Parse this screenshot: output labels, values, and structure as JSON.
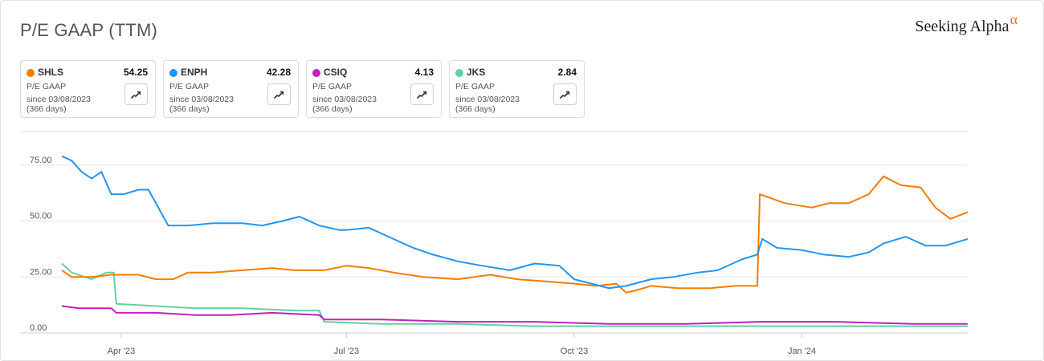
{
  "header": {
    "title": "P/E GAAP (TTM)",
    "brand": "Seeking Alpha",
    "brand_mark": "α"
  },
  "cards": [
    {
      "ticker": "SHLS",
      "value": "54.25",
      "metric": "P/E GAAP",
      "since": "since 03/08/2023",
      "days": "(366 days)",
      "color": "#f57c00",
      "icon": "trend-chart-icon"
    },
    {
      "ticker": "ENPH",
      "value": "42.28",
      "metric": "P/E GAAP",
      "since": "since 03/08/2023",
      "days": "(366 days)",
      "color": "#2196f3",
      "icon": "trend-chart-icon"
    },
    {
      "ticker": "CSIQ",
      "value": "4.13",
      "metric": "P/E GAAP",
      "since": "since 03/08/2023",
      "days": "(366 days)",
      "color": "#c020c0",
      "icon": "trend-chart-icon"
    },
    {
      "ticker": "JKS",
      "value": "2.84",
      "metric": "P/E GAAP",
      "since": "since 03/08/2023",
      "days": "(366 days)",
      "color": "#5ed3a0",
      "icon": "trend-chart-icon"
    }
  ],
  "chart_data": {
    "type": "line",
    "title": "P/E GAAP (TTM)",
    "xlabel": "",
    "ylabel": "",
    "ylim": [
      0,
      90
    ],
    "y_ticks": [
      0,
      25,
      50,
      75
    ],
    "y_tick_labels": [
      "0.00",
      "25.00",
      "50.00",
      "75.00"
    ],
    "x_range": [
      "2023-03-08",
      "2024-03-08"
    ],
    "x_ticks": [
      "2023-04-01",
      "2023-07-01",
      "2023-10-01",
      "2024-01-01"
    ],
    "x_tick_labels": [
      "Apr '23",
      "Jul '23",
      "Oct '23",
      "Jan '24"
    ],
    "grid": true,
    "legend": "top",
    "series": [
      {
        "name": "SHLS",
        "color": "#f57c00",
        "points": [
          [
            "2023-03-08",
            28
          ],
          [
            "2023-03-12",
            25
          ],
          [
            "2023-03-20",
            25
          ],
          [
            "2023-03-28",
            26
          ],
          [
            "2023-04-08",
            26
          ],
          [
            "2023-04-15",
            24
          ],
          [
            "2023-04-22",
            24
          ],
          [
            "2023-04-28",
            27
          ],
          [
            "2023-05-08",
            27
          ],
          [
            "2023-05-20",
            28
          ],
          [
            "2023-06-01",
            29
          ],
          [
            "2023-06-10",
            28
          ],
          [
            "2023-06-22",
            28
          ],
          [
            "2023-07-01",
            30
          ],
          [
            "2023-07-10",
            29
          ],
          [
            "2023-07-20",
            27
          ],
          [
            "2023-08-01",
            25
          ],
          [
            "2023-08-15",
            24
          ],
          [
            "2023-08-28",
            26
          ],
          [
            "2023-09-08",
            24
          ],
          [
            "2023-09-20",
            23
          ],
          [
            "2023-10-01",
            22
          ],
          [
            "2023-10-10",
            21
          ],
          [
            "2023-10-18",
            22
          ],
          [
            "2023-10-22",
            18
          ],
          [
            "2023-10-26",
            19
          ],
          [
            "2023-11-01",
            21
          ],
          [
            "2023-11-12",
            20
          ],
          [
            "2023-11-25",
            20
          ],
          [
            "2023-12-05",
            21
          ],
          [
            "2023-12-14",
            21
          ],
          [
            "2023-12-15",
            62
          ],
          [
            "2023-12-25",
            58
          ],
          [
            "2024-01-05",
            56
          ],
          [
            "2024-01-12",
            58
          ],
          [
            "2024-01-20",
            58
          ],
          [
            "2024-01-28",
            62
          ],
          [
            "2024-02-03",
            70
          ],
          [
            "2024-02-10",
            66
          ],
          [
            "2024-02-18",
            65
          ],
          [
            "2024-02-24",
            56
          ],
          [
            "2024-03-01",
            51
          ],
          [
            "2024-03-08",
            54
          ]
        ]
      },
      {
        "name": "ENPH",
        "color": "#2196f3",
        "points": [
          [
            "2023-03-08",
            79
          ],
          [
            "2023-03-12",
            77
          ],
          [
            "2023-03-16",
            72
          ],
          [
            "2023-03-20",
            69
          ],
          [
            "2023-03-24",
            72
          ],
          [
            "2023-03-28",
            62
          ],
          [
            "2023-04-02",
            62
          ],
          [
            "2023-04-08",
            64
          ],
          [
            "2023-04-12",
            64
          ],
          [
            "2023-04-20",
            48
          ],
          [
            "2023-04-28",
            48
          ],
          [
            "2023-05-08",
            49
          ],
          [
            "2023-05-20",
            49
          ],
          [
            "2023-05-28",
            48
          ],
          [
            "2023-06-05",
            50
          ],
          [
            "2023-06-12",
            52
          ],
          [
            "2023-06-20",
            48
          ],
          [
            "2023-06-28",
            46
          ],
          [
            "2023-07-01",
            46
          ],
          [
            "2023-07-10",
            47
          ],
          [
            "2023-07-20",
            42
          ],
          [
            "2023-07-28",
            38
          ],
          [
            "2023-08-05",
            35
          ],
          [
            "2023-08-15",
            32
          ],
          [
            "2023-08-25",
            30
          ],
          [
            "2023-09-05",
            28
          ],
          [
            "2023-09-15",
            31
          ],
          [
            "2023-09-25",
            30
          ],
          [
            "2023-10-01",
            24
          ],
          [
            "2023-10-08",
            22
          ],
          [
            "2023-10-15",
            20
          ],
          [
            "2023-10-22",
            21
          ],
          [
            "2023-11-01",
            24
          ],
          [
            "2023-11-10",
            25
          ],
          [
            "2023-11-20",
            27
          ],
          [
            "2023-11-28",
            28
          ],
          [
            "2023-12-08",
            33
          ],
          [
            "2023-12-14",
            35
          ],
          [
            "2023-12-16",
            42
          ],
          [
            "2023-12-22",
            38
          ],
          [
            "2024-01-01",
            37
          ],
          [
            "2024-01-10",
            35
          ],
          [
            "2024-01-20",
            34
          ],
          [
            "2024-01-28",
            36
          ],
          [
            "2024-02-03",
            40
          ],
          [
            "2024-02-12",
            43
          ],
          [
            "2024-02-20",
            39
          ],
          [
            "2024-02-28",
            39
          ],
          [
            "2024-03-08",
            42
          ]
        ]
      },
      {
        "name": "CSIQ",
        "color": "#c020c0",
        "points": [
          [
            "2023-03-08",
            12
          ],
          [
            "2023-03-15",
            11
          ],
          [
            "2023-03-28",
            11
          ],
          [
            "2023-03-30",
            9
          ],
          [
            "2023-04-15",
            9
          ],
          [
            "2023-05-01",
            8
          ],
          [
            "2023-05-15",
            8
          ],
          [
            "2023-06-01",
            9
          ],
          [
            "2023-06-20",
            8
          ],
          [
            "2023-06-22",
            6
          ],
          [
            "2023-07-15",
            6
          ],
          [
            "2023-08-15",
            5
          ],
          [
            "2023-09-15",
            5
          ],
          [
            "2023-10-15",
            4
          ],
          [
            "2023-11-15",
            4
          ],
          [
            "2023-12-15",
            5
          ],
          [
            "2024-01-15",
            5
          ],
          [
            "2024-02-15",
            4
          ],
          [
            "2024-03-08",
            4
          ]
        ]
      },
      {
        "name": "JKS",
        "color": "#5ed3a0",
        "points": [
          [
            "2023-03-08",
            31
          ],
          [
            "2023-03-12",
            27
          ],
          [
            "2023-03-20",
            24
          ],
          [
            "2023-03-26",
            27
          ],
          [
            "2023-03-29",
            27
          ],
          [
            "2023-03-30",
            13
          ],
          [
            "2023-04-15",
            12
          ],
          [
            "2023-05-01",
            11
          ],
          [
            "2023-05-20",
            11
          ],
          [
            "2023-06-10",
            10
          ],
          [
            "2023-06-20",
            10
          ],
          [
            "2023-06-22",
            5
          ],
          [
            "2023-07-15",
            4
          ],
          [
            "2023-08-15",
            4
          ],
          [
            "2023-09-15",
            3
          ],
          [
            "2023-10-15",
            3
          ],
          [
            "2023-11-15",
            3
          ],
          [
            "2023-12-15",
            3
          ],
          [
            "2024-01-15",
            3
          ],
          [
            "2024-02-15",
            3
          ],
          [
            "2024-03-08",
            3
          ]
        ]
      }
    ]
  }
}
